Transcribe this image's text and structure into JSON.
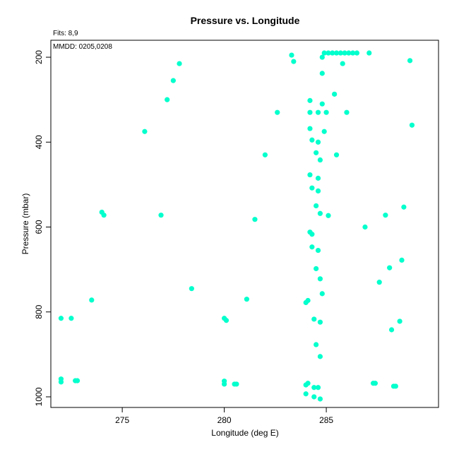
{
  "chart_data": {
    "type": "scatter",
    "title": "Pressure vs. Longitude",
    "xlabel": "Longitude (deg E)",
    "ylabel": "Pressure (mbar)",
    "xlim": [
      271.5,
      290.5
    ],
    "ylim": [
      1025,
      160
    ],
    "y_reversed": true,
    "xticks": [
      275,
      280,
      285
    ],
    "yticks": [
      200,
      400,
      600,
      800,
      1000
    ],
    "grid": false,
    "point_color": "#00ffcc",
    "annotations": [
      "Fits: 8,9",
      "MMDD: 0205,0208"
    ],
    "points": [
      [
        283.3,
        195
      ],
      [
        283.4,
        210
      ],
      [
        284.9,
        190
      ],
      [
        285.1,
        190
      ],
      [
        285.3,
        190
      ],
      [
        285.5,
        190
      ],
      [
        285.7,
        190
      ],
      [
        285.9,
        190
      ],
      [
        286.1,
        190
      ],
      [
        286.3,
        190
      ],
      [
        286.5,
        190
      ],
      [
        287.1,
        190
      ],
      [
        284.8,
        200
      ],
      [
        285.8,
        215
      ],
      [
        289.1,
        208
      ],
      [
        277.8,
        215
      ],
      [
        277.5,
        255
      ],
      [
        284.8,
        238
      ],
      [
        285.4,
        287
      ],
      [
        277.2,
        300
      ],
      [
        284.2,
        302
      ],
      [
        284.8,
        310
      ],
      [
        282.6,
        330
      ],
      [
        284.2,
        330
      ],
      [
        284.6,
        330
      ],
      [
        285.0,
        330
      ],
      [
        286.0,
        330
      ],
      [
        289.2,
        360
      ],
      [
        276.1,
        375
      ],
      [
        284.2,
        368
      ],
      [
        284.9,
        375
      ],
      [
        284.3,
        395
      ],
      [
        284.6,
        400
      ],
      [
        282.0,
        430
      ],
      [
        284.5,
        425
      ],
      [
        285.5,
        430
      ],
      [
        284.7,
        442
      ],
      [
        284.2,
        477
      ],
      [
        284.6,
        485
      ],
      [
        284.3,
        508
      ],
      [
        284.6,
        515
      ],
      [
        284.5,
        550
      ],
      [
        288.8,
        553
      ],
      [
        274.0,
        565
      ],
      [
        274.1,
        572
      ],
      [
        276.9,
        572
      ],
      [
        284.7,
        568
      ],
      [
        285.1,
        573
      ],
      [
        287.9,
        572
      ],
      [
        281.5,
        582
      ],
      [
        286.9,
        600
      ],
      [
        284.2,
        612
      ],
      [
        284.3,
        617
      ],
      [
        284.3,
        647
      ],
      [
        284.6,
        655
      ],
      [
        288.7,
        678
      ],
      [
        284.5,
        698
      ],
      [
        288.1,
        696
      ],
      [
        284.7,
        722
      ],
      [
        287.6,
        730
      ],
      [
        278.4,
        745
      ],
      [
        273.5,
        772
      ],
      [
        281.1,
        770
      ],
      [
        284.8,
        757
      ],
      [
        284.1,
        773
      ],
      [
        284.0,
        778
      ],
      [
        272.0,
        815
      ],
      [
        272.5,
        815
      ],
      [
        280.0,
        815
      ],
      [
        280.1,
        820
      ],
      [
        284.4,
        817
      ],
      [
        284.7,
        824
      ],
      [
        288.6,
        822
      ],
      [
        288.2,
        842
      ],
      [
        284.5,
        877
      ],
      [
        284.7,
        905
      ],
      [
        272.0,
        958
      ],
      [
        272.0,
        965
      ],
      [
        272.7,
        962
      ],
      [
        272.8,
        962
      ],
      [
        280.0,
        963
      ],
      [
        280.0,
        970
      ],
      [
        280.5,
        970
      ],
      [
        280.6,
        970
      ],
      [
        284.1,
        968
      ],
      [
        284.0,
        972
      ],
      [
        284.4,
        978
      ],
      [
        284.6,
        978
      ],
      [
        287.3,
        968
      ],
      [
        287.4,
        968
      ],
      [
        288.3,
        975
      ],
      [
        288.4,
        975
      ],
      [
        284.0,
        993
      ],
      [
        284.4,
        1000
      ],
      [
        284.7,
        1005
      ]
    ]
  }
}
